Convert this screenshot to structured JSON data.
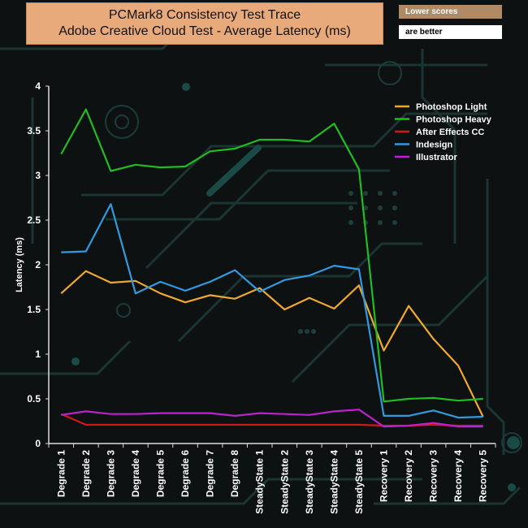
{
  "title": {
    "line1": "PCMark8 Consistency Test Trace",
    "line2": "Adobe Creative Cloud Test -  Average Latency (ms)"
  },
  "badge": {
    "top": "Lower scores",
    "bottom": "are better"
  },
  "colors": {
    "bg": "#0d1112",
    "circuit": "#1f3a38",
    "axis": "#dddddd"
  },
  "chart_data": {
    "type": "line",
    "title": "PCMark8 Consistency Test Trace - Adobe Creative Cloud Test - Average Latency (ms)",
    "xlabel": "",
    "ylabel": "Latency (ms)",
    "ylim": [
      0,
      4
    ],
    "yticks": [
      "0",
      "0.5",
      "1",
      "1.5",
      "2",
      "2.5",
      "3",
      "3.5",
      "4"
    ],
    "categories": [
      "Degrade 1",
      "Degrade 2",
      "Degrade 3",
      "Degrade 4",
      "Degrade 5",
      "Degrade 6",
      "Degrade 7",
      "Degrade 8",
      "SteadyState 1",
      "SteadyState 2",
      "SteadyState 3",
      "SteadyState 4",
      "SteadyState 5",
      "Recovery 1",
      "Recovery 2",
      "Recovery 3",
      "Recovery 4",
      "Recovery 5"
    ],
    "legend_position": "top-right",
    "series": [
      {
        "name": "Photoshop Light",
        "color": "#f0a830",
        "values": [
          1.68,
          1.93,
          1.8,
          1.82,
          1.68,
          1.58,
          1.66,
          1.62,
          1.74,
          1.5,
          1.63,
          1.51,
          1.77,
          1.04,
          1.54,
          1.17,
          0.87,
          0.3
        ]
      },
      {
        "name": " Photoshop Heavy",
        "color": "#22bb22",
        "values": [
          3.24,
          3.74,
          3.05,
          3.12,
          3.09,
          3.1,
          3.27,
          3.3,
          3.4,
          3.4,
          3.38,
          3.58,
          3.07,
          0.47,
          0.5,
          0.51,
          0.48,
          0.5
        ]
      },
      {
        "name": "After Effects CC",
        "color": "#d01818",
        "values": [
          0.33,
          0.21,
          0.21,
          0.21,
          0.21,
          0.21,
          0.21,
          0.21,
          0.21,
          0.21,
          0.21,
          0.21,
          0.21,
          0.2,
          0.2,
          0.21,
          0.2,
          0.2
        ]
      },
      {
        "name": "Indesign",
        "color": "#3399dd",
        "values": [
          2.14,
          2.15,
          2.68,
          1.68,
          1.81,
          1.71,
          1.81,
          1.94,
          1.7,
          1.83,
          1.88,
          1.99,
          1.95,
          0.31,
          0.31,
          0.37,
          0.29,
          0.3
        ]
      },
      {
        "name": "Illustrator",
        "color": "#bb22cc",
        "values": [
          0.32,
          0.36,
          0.33,
          0.33,
          0.34,
          0.34,
          0.34,
          0.31,
          0.34,
          0.33,
          0.32,
          0.36,
          0.38,
          0.19,
          0.2,
          0.23,
          0.19,
          0.19
        ]
      }
    ]
  }
}
